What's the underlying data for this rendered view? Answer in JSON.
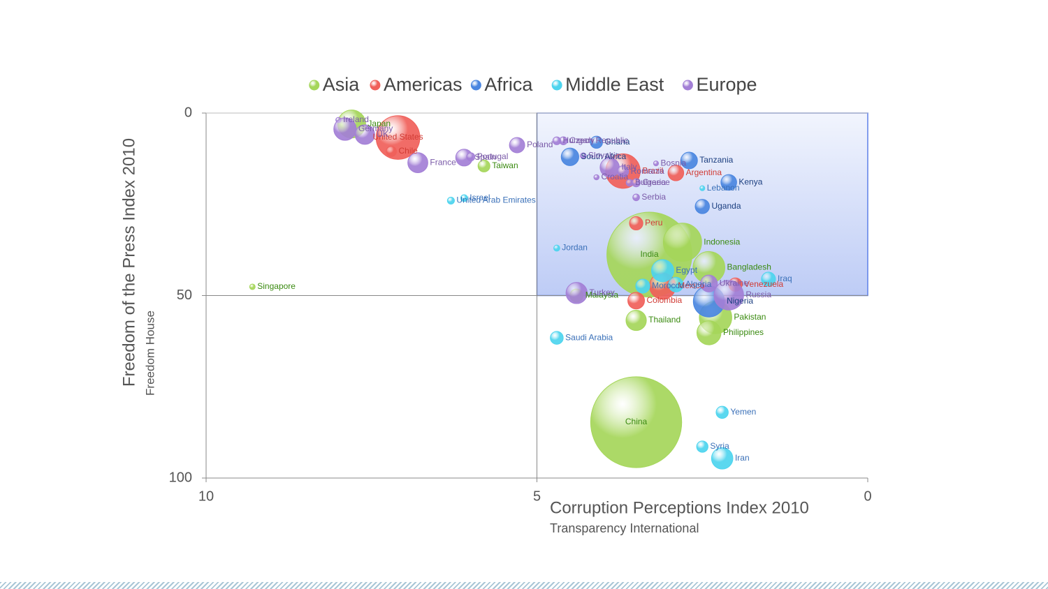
{
  "chart_data": {
    "type": "bubble",
    "x_label": "Corruption Perceptions Index 2010",
    "x_sublabel": "Transparency International",
    "y_label": "Freedom of the Press Index 2010",
    "y_sublabel": "Freedom House",
    "xlim": [
      10,
      0
    ],
    "xticks": [
      10,
      5,
      0
    ],
    "ylim": [
      0,
      100
    ],
    "yticks": [
      0,
      50,
      100
    ],
    "highlight": {
      "xlim": [
        5,
        0
      ],
      "ylim": [
        0,
        50
      ],
      "color": "#5b7fe8"
    },
    "divider": {
      "x": 5,
      "y": 50
    },
    "legend": "top",
    "series": [
      {
        "name": "Asia",
        "color": "#a5d65a",
        "label_color": "#3a8a10",
        "labels": [
          "Japan",
          "Taiwan",
          "Singapore",
          "India",
          "Indonesia",
          "Bangladesh",
          "Malaysia",
          "Thailand",
          "Pakistan",
          "Philippines",
          "China"
        ],
        "x": [
          7.8,
          5.8,
          9.3,
          3.3,
          2.8,
          2.4,
          4.4,
          3.5,
          2.3,
          2.4,
          3.5
        ],
        "y": [
          3,
          14.5,
          47.6,
          38.8,
          35.4,
          42.3,
          50,
          56.8,
          56,
          60.2,
          84.7
        ],
        "sizes": [
          127,
          23,
          5,
          1170,
          237,
          164,
          28,
          67,
          170,
          94,
          1340
        ]
      },
      {
        "name": "Americas",
        "color": "#f0605a",
        "label_color": "#d03a34",
        "labels": [
          "United States",
          "Chile",
          "Brazil",
          "Argentina",
          "Peru",
          "Venezuela",
          "Colombia",
          "Mexico"
        ],
        "x": [
          7.1,
          7.2,
          3.7,
          2.9,
          3.5,
          2.0,
          3.5,
          3.1
        ],
        "y": [
          6.7,
          10.5,
          15.9,
          16.4,
          30.2,
          47,
          51.4,
          47.4
        ],
        "sizes": [
          310,
          17,
          193,
          40,
          29,
          29,
          45,
          112
        ]
      },
      {
        "name": "Africa",
        "color": "#4a86e0",
        "label_color": "#1c3f80",
        "labels": [
          "Ghana",
          "South Africa",
          "Tanzania",
          "Kenya",
          "Uganda",
          "Nigeria"
        ],
        "x": [
          4.1,
          4.5,
          2.7,
          2.1,
          2.5,
          2.4
        ],
        "y": [
          8,
          12,
          13,
          19,
          25.6,
          51.6
        ],
        "sizes": [
          24,
          50,
          45,
          40,
          33,
          158
        ]
      },
      {
        "name": "Middle East",
        "color": "#4dd4ee",
        "label_color": "#3a70b8",
        "labels": [
          "Israel",
          "United Arab Emirates",
          "Jordan",
          "Lebanon",
          "Egypt",
          "Morocco",
          "Algeria",
          "Iraq",
          "Saudi Arabia",
          "Yemen",
          "Syria",
          "Iran"
        ],
        "x": [
          6.1,
          6.3,
          4.7,
          2.5,
          3.1,
          3.4,
          2.9,
          1.5,
          4.7,
          2.2,
          2.5,
          2.2
        ],
        "y": [
          23.3,
          24,
          37,
          20.6,
          43.2,
          47.4,
          47,
          45.5,
          61.6,
          82,
          91.4,
          94.6
        ],
        "sizes": [
          7.6,
          8,
          6,
          4,
          80,
          32,
          35,
          32,
          27,
          24,
          21,
          74
        ]
      },
      {
        "name": "Europe",
        "color": "#a37fd6",
        "label_color": "#7a5aa8",
        "labels": [
          "Ireland",
          "Germany",
          "UK",
          "France",
          "Spain",
          "Portugal",
          "Poland",
          "Czech Republic",
          "Hungary",
          "Slovakia",
          "Italy",
          "Romania",
          "Bosnia",
          "Croatia",
          "Bulgaria",
          "Greece",
          "Serbia",
          "Turkey",
          "Ukraine",
          "Russia"
        ],
        "x": [
          8.0,
          7.9,
          7.6,
          6.8,
          6.1,
          6.0,
          5.3,
          4.6,
          4.7,
          4.3,
          3.9,
          3.7,
          3.2,
          4.1,
          3.6,
          3.5,
          3.5,
          4.4,
          2.4,
          2.1
        ],
        "y": [
          1.9,
          4.4,
          5.9,
          13.6,
          12.2,
          12,
          8.8,
          7.6,
          7.6,
          11.7,
          14.9,
          16,
          13.8,
          17.6,
          19.1,
          19.1,
          23.1,
          49.3,
          46.7,
          49.9
        ],
        "sizes": [
          4.5,
          82,
          62,
          65,
          46,
          11,
          38,
          10.5,
          10,
          5.4,
          60,
          21,
          4,
          4.4,
          7.5,
          11,
          7.3,
          73,
          46,
          142
        ]
      }
    ]
  }
}
